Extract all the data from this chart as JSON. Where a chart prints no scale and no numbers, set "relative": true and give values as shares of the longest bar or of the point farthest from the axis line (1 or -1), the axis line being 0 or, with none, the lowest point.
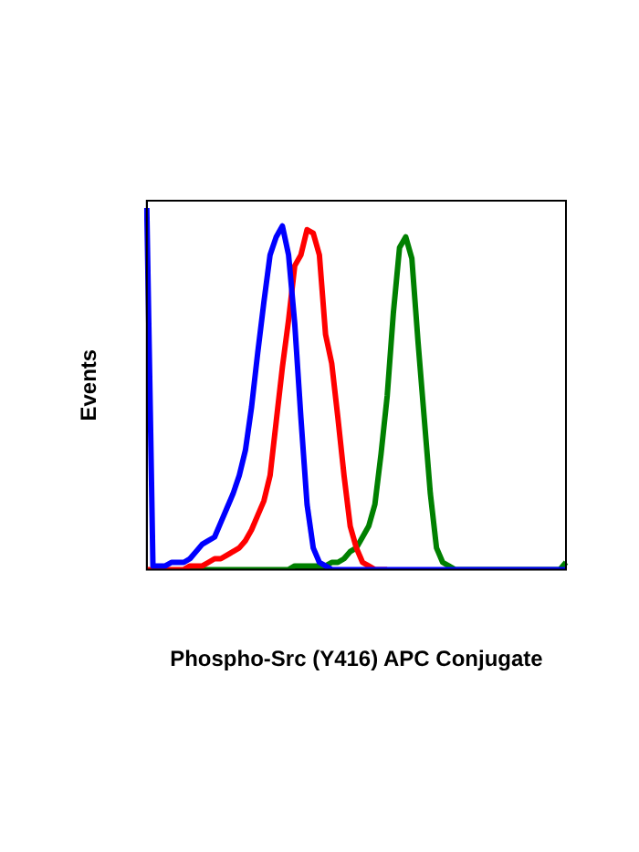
{
  "chart_data": {
    "type": "line",
    "xlabel": "Phospho-Src (Y416) APC Conjugate",
    "ylabel": "Events",
    "relative": true,
    "categories": [
      null,
      null,
      null,
      null,
      null,
      null,
      null,
      null,
      null,
      null,
      null,
      null,
      null,
      null,
      null,
      null,
      null,
      null,
      null,
      null,
      null,
      null,
      null,
      null,
      null,
      null,
      null,
      null,
      null,
      null,
      null,
      null,
      null,
      null,
      null,
      null,
      null,
      null,
      null,
      null,
      null,
      null,
      null,
      null,
      null,
      null,
      null,
      null,
      null,
      null,
      null,
      null,
      null,
      null,
      null,
      null,
      null,
      null,
      null,
      null,
      null,
      null,
      null,
      null,
      null,
      null,
      null,
      null,
      null
    ],
    "series": [
      {
        "color": "#0000ff",
        "values": [
          1.0,
          0.01,
          0.01,
          0.01,
          0.02,
          0.02,
          0.02,
          0.03,
          0.05,
          0.07,
          0.08,
          0.09,
          0.13,
          0.17,
          0.21,
          0.26,
          0.33,
          0.45,
          0.6,
          0.74,
          0.87,
          0.92,
          0.95,
          0.87,
          0.68,
          0.42,
          0.18,
          0.06,
          0.02,
          0.01,
          0,
          0,
          0,
          0,
          0,
          0,
          0,
          0,
          0,
          0,
          0,
          0,
          0,
          0,
          0,
          0,
          0,
          0,
          0,
          0,
          0,
          0,
          0,
          0,
          0,
          0,
          0,
          0,
          0,
          0,
          0,
          0,
          0,
          0,
          0,
          0,
          0,
          0,
          0
        ]
      },
      {
        "color": "#ff0000",
        "values": [
          0,
          0,
          0,
          0,
          0,
          0,
          0,
          0.01,
          0.01,
          0.01,
          0.02,
          0.03,
          0.03,
          0.04,
          0.05,
          0.06,
          0.08,
          0.11,
          0.15,
          0.19,
          0.26,
          0.41,
          0.56,
          0.69,
          0.84,
          0.87,
          0.94,
          0.93,
          0.87,
          0.65,
          0.57,
          0.42,
          0.26,
          0.12,
          0.06,
          0.02,
          0.01,
          0,
          0,
          0,
          null,
          null,
          null,
          null,
          null,
          null,
          null,
          null,
          null,
          null,
          null,
          null,
          null,
          null,
          null,
          null,
          null,
          null,
          null,
          null,
          null,
          null,
          null,
          null,
          null,
          null,
          null,
          null,
          null
        ]
      },
      {
        "color": "#008000",
        "values": [
          null,
          null,
          null,
          null,
          null,
          null,
          null,
          0,
          0,
          0,
          0,
          0,
          0,
          0,
          0,
          0,
          0,
          0,
          0,
          0,
          0,
          0,
          0,
          0,
          0.01,
          0.01,
          0.01,
          0.01,
          0.01,
          0.01,
          0.02,
          0.02,
          0.03,
          0.05,
          0.06,
          0.09,
          0.12,
          0.18,
          0.32,
          0.48,
          0.71,
          0.89,
          0.92,
          0.86,
          0.63,
          0.42,
          0.21,
          0.06,
          0.02,
          0.01,
          0,
          0,
          0,
          0,
          0,
          0,
          0,
          0,
          0,
          0,
          0,
          0,
          0,
          0,
          0,
          0,
          0,
          0,
          0.02
        ]
      }
    ]
  }
}
